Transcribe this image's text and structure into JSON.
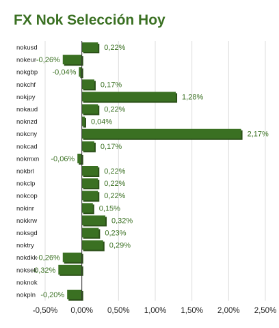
{
  "chart_data": {
    "type": "bar",
    "orientation": "horizontal",
    "title": "FX Nok Selección Hoy",
    "categories": [
      "nokusd",
      "nokeur",
      "nokgbp",
      "nokchf",
      "nokjpy",
      "nokaud",
      "noknzd",
      "nokcny",
      "nokcad",
      "nokmxn",
      "nokbrl",
      "nokclp",
      "nokcop",
      "nokinr",
      "nokkrw",
      "noksgd",
      "noktry",
      "nokdkk",
      "noksek",
      "noknok",
      "nokpln"
    ],
    "values": [
      0.22,
      -0.26,
      -0.04,
      0.17,
      1.28,
      0.22,
      0.04,
      2.17,
      0.17,
      -0.06,
      0.22,
      0.22,
      0.22,
      0.15,
      0.32,
      0.23,
      0.29,
      -0.26,
      -0.32,
      0,
      -0.2
    ],
    "value_labels": [
      "0,22%",
      "-0,26%",
      "-0,04%",
      "0,17%",
      "1,28%",
      "0,22%",
      "0,04%",
      "2,17%",
      "0,17%",
      "-0,06%",
      "0,22%",
      "0,22%",
      "0,22%",
      "0,15%",
      "0,32%",
      "0,23%",
      "0,29%",
      "-0,26%",
      "-0,32%",
      "",
      "-0,20%"
    ],
    "xlim": [
      -0.5,
      2.5
    ],
    "xticks": [
      -0.5,
      0,
      0.5,
      1,
      1.5,
      2,
      2.5
    ],
    "xtick_labels": [
      "-0,50%",
      "0,00%",
      "0,50%",
      "1,00%",
      "1,50%",
      "2,00%",
      "2,50%"
    ],
    "grid": true,
    "bar_color": "#3a7022",
    "bar_shadow_color": "#2a4f17"
  }
}
